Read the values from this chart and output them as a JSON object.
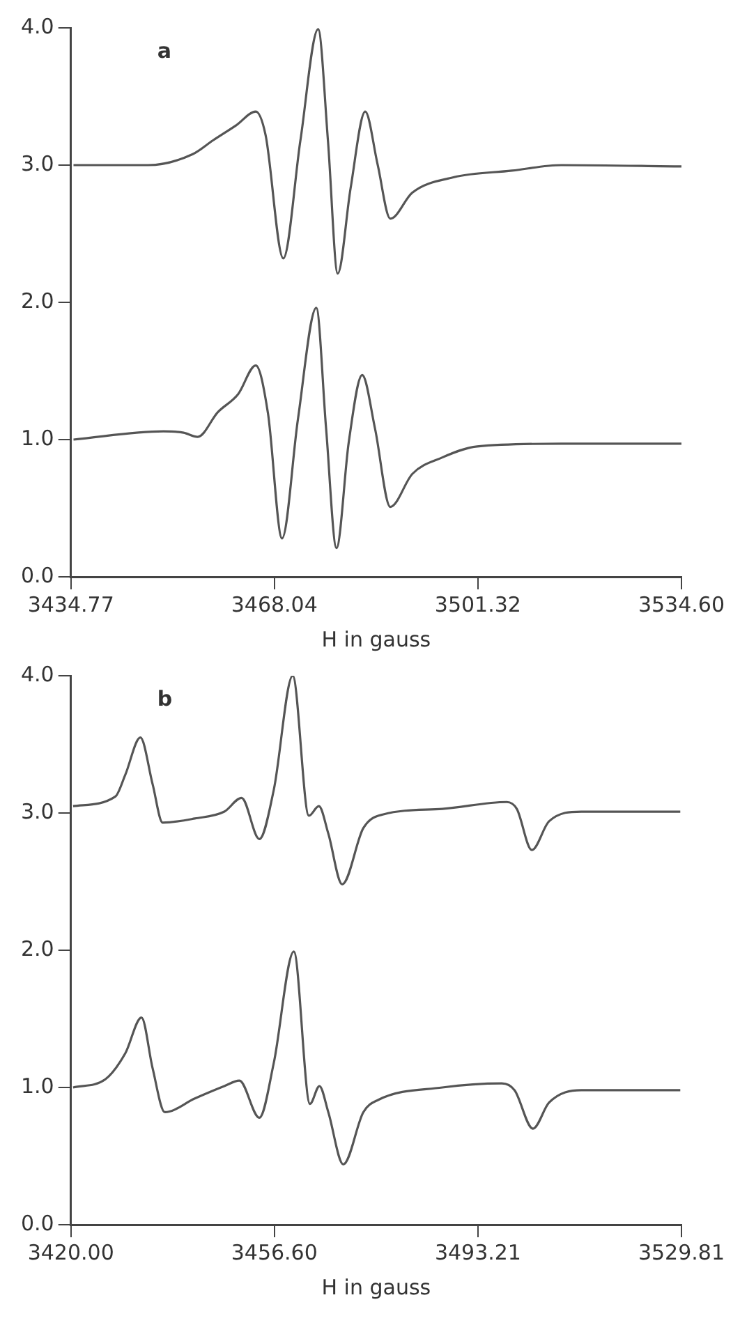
{
  "chart_data": [
    {
      "type": "line",
      "xlabel": "H in gauss",
      "annotations": [
        "a"
      ],
      "marker": "none",
      "xlim": [
        3434.77,
        3534.6
      ],
      "xticks": [
        3434.77,
        3468.04,
        3501.32,
        {
          "value": 3534.6,
          "label": "3534.60"
        }
      ],
      "ylim": [
        0,
        4
      ],
      "yticks": [
        {
          "value": 0,
          "label": "0.0"
        },
        {
          "value": 1,
          "label": "1.0"
        },
        {
          "value": 2,
          "label": "2.0"
        },
        {
          "value": 3,
          "label": "3.0"
        },
        {
          "value": 4,
          "label": "4.0"
        }
      ],
      "series": [
        {
          "color": "#555555",
          "x": [
            3435.2,
            3447.4,
            3454.7,
            3458.0,
            3461.8,
            3465.0,
            3466.6,
            3469.5,
            3472.3,
            3475.2,
            3476.8,
            3478.4,
            3480.5,
            3482.9,
            3484.9,
            3487.0,
            3490.6,
            3497.2,
            3506.9,
            3515.0,
            3534.6
          ],
          "values": [
            3.0,
            3.0,
            3.08,
            3.18,
            3.29,
            3.39,
            3.22,
            2.32,
            3.18,
            3.99,
            3.18,
            2.21,
            2.83,
            3.39,
            3.01,
            2.61,
            2.8,
            2.91,
            2.96,
            3.0,
            2.99
          ]
        },
        {
          "color": "#555555",
          "x": [
            3435.2,
            3449.9,
            3453.2,
            3455.5,
            3458.8,
            3462.1,
            3465.0,
            3467.0,
            3469.3,
            3471.9,
            3474.9,
            3476.5,
            3478.2,
            3480.2,
            3482.4,
            3484.5,
            3487.0,
            3490.6,
            3495.5,
            3501.2,
            3515.0,
            3534.6
          ],
          "values": [
            1.0,
            1.06,
            1.05,
            1.02,
            1.2,
            1.33,
            1.54,
            1.19,
            0.28,
            1.15,
            1.96,
            1.08,
            0.21,
            0.98,
            1.47,
            1.08,
            0.51,
            0.75,
            0.87,
            0.95,
            0.97,
            0.97
          ]
        }
      ]
    },
    {
      "type": "line",
      "xlabel": "H in gauss",
      "annotations": [
        "b"
      ],
      "marker": "none",
      "xlim": [
        3420,
        3529.81
      ],
      "xticks": [
        {
          "value": 3420,
          "label": "3420.00"
        },
        {
          "value": 3456.6,
          "label": "3456.60"
        },
        3493.21,
        3529.81
      ],
      "ylim": [
        0,
        4
      ],
      "yticks": [
        {
          "value": 0,
          "label": "0.0"
        },
        {
          "value": 1,
          "label": "1.0"
        },
        {
          "value": 2,
          "label": "2.0"
        },
        {
          "value": 3,
          "label": "3.0"
        },
        {
          "value": 4,
          "label": "4.0"
        }
      ],
      "series": [
        {
          "color": "#555555",
          "x": [
            3420.4,
            3428.0,
            3429.8,
            3432.5,
            3434.7,
            3436.5,
            3442.3,
            3447.6,
            3450.7,
            3453.9,
            3456.5,
            3459.9,
            3462.8,
            3464.6,
            3466.3,
            3468.8,
            3472.6,
            3476.2,
            3486.8,
            3498.4,
            3500.2,
            3502.9,
            3506.0,
            3511.8,
            3529.6
          ],
          "values": [
            3.05,
            3.12,
            3.28,
            3.55,
            3.21,
            2.93,
            2.96,
            3.01,
            3.11,
            2.81,
            3.17,
            4.0,
            2.98,
            3.05,
            2.85,
            2.48,
            2.89,
            2.99,
            3.03,
            3.08,
            3.03,
            2.73,
            2.94,
            3.01,
            3.01
          ]
        },
        {
          "color": "#555555",
          "x": [
            3420.4,
            3426.2,
            3429.8,
            3432.7,
            3434.7,
            3436.9,
            3442.3,
            3447.6,
            3450.3,
            3453.9,
            3456.5,
            3460.1,
            3463.0,
            3464.7,
            3466.3,
            3469.0,
            3472.6,
            3475.3,
            3486.8,
            3497.5,
            3499.8,
            3503.1,
            3506.0,
            3511.8,
            3529.6
          ],
          "values": [
            1.0,
            1.06,
            1.25,
            1.51,
            1.14,
            0.82,
            0.92,
            1.01,
            1.05,
            0.78,
            1.18,
            1.99,
            0.88,
            1.01,
            0.82,
            0.44,
            0.82,
            0.91,
            1.0,
            1.03,
            0.98,
            0.7,
            0.89,
            0.98,
            0.98
          ]
        }
      ]
    }
  ]
}
